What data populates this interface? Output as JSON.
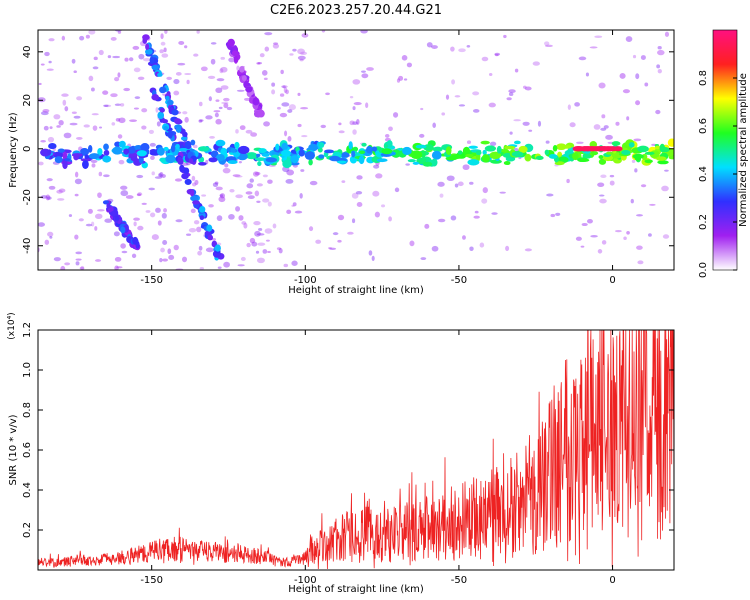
{
  "title": "C2E6.2023.257.20.44.G21",
  "chart_data": [
    {
      "type": "heatmap",
      "xlabel": "Height of straight line (km)",
      "ylabel": "Frequency (Hz)",
      "xlim": [
        -187,
        20
      ],
      "ylim": [
        -50,
        49
      ],
      "xticks": [
        -150,
        -100,
        -50,
        0
      ],
      "yticks": [
        -40,
        -20,
        0,
        20,
        40
      ],
      "colorbar": {
        "label": "Normalized spectral amplitude",
        "range": [
          0,
          1
        ],
        "ticks": [
          "0.0",
          "0.2",
          "0.4",
          "0.6",
          "0.8"
        ],
        "colormap": [
          "#ffffff",
          "#a020f0",
          "#3030ff",
          "#00e0ff",
          "#20ff20",
          "#ffff00",
          "#ff2020",
          "#ff1080"
        ]
      },
      "features": [
        {
          "name": "horizontal band",
          "x": [
            -185,
            20
          ],
          "y": [
            -5,
            1
          ],
          "level": 0.5
        },
        {
          "name": "strong segment",
          "x": [
            -12,
            2
          ],
          "y": [
            0,
            0
          ],
          "level": 0.95
        },
        {
          "name": "streak A",
          "x": [
            -153,
            -135
          ],
          "y": [
            48,
            -10
          ],
          "level": 0.3
        },
        {
          "name": "streak B",
          "x": [
            -150,
            -128
          ],
          "y": [
            25,
            -45
          ],
          "level": 0.3
        },
        {
          "name": "streak C",
          "x": [
            -165,
            -155
          ],
          "y": [
            -22,
            -40
          ],
          "level": 0.25
        },
        {
          "name": "streak D",
          "x": [
            -125,
            -115
          ],
          "y": [
            45,
            15
          ],
          "level": 0.15
        }
      ]
    },
    {
      "type": "line",
      "xlabel": "Height of straight line (km)",
      "ylabel": "SNR (10 * v/v)",
      "multiplier": "(x10⁴)",
      "xlim": [
        -187,
        20
      ],
      "ylim": [
        0,
        1.2
      ],
      "xticks": [
        -150,
        -100,
        -50,
        0
      ],
      "yticks": [
        0.2,
        0.4,
        0.6,
        0.8,
        1.0,
        1.2
      ],
      "ytick_labels": [
        "0.2",
        "0.4",
        "0.6",
        "0.8",
        "1.0",
        "1.2"
      ],
      "series": [
        {
          "color": "#ee2222",
          "x": [
            -187,
            -180,
            -175,
            -170,
            -165,
            -160,
            -155,
            -150,
            -145,
            -140,
            -135,
            -130,
            -125,
            -120,
            -115,
            -110,
            -105,
            -100,
            -95,
            -90,
            -85,
            -80,
            -75,
            -70,
            -65,
            -60,
            -55,
            -50,
            -45,
            -40,
            -35,
            -30,
            -25,
            -22,
            -20,
            -17,
            -15,
            -12,
            -10,
            -7,
            -5,
            -2,
            0,
            3,
            5,
            8,
            10,
            13,
            15,
            18,
            20
          ],
          "y": [
            0.05,
            0.05,
            0.06,
            0.06,
            0.07,
            0.08,
            0.1,
            0.12,
            0.14,
            0.13,
            0.12,
            0.12,
            0.11,
            0.1,
            0.09,
            0.06,
            0.05,
            0.08,
            0.12,
            0.16,
            0.18,
            0.19,
            0.19,
            0.2,
            0.21,
            0.22,
            0.24,
            0.26,
            0.28,
            0.3,
            0.33,
            0.36,
            0.4,
            0.47,
            0.55,
            0.65,
            0.72,
            0.7,
            0.68,
            0.7,
            0.72,
            0.78,
            0.8,
            0.82,
            0.83,
            0.84,
            0.85,
            0.86,
            0.87,
            0.88,
            0.9
          ]
        }
      ]
    }
  ]
}
